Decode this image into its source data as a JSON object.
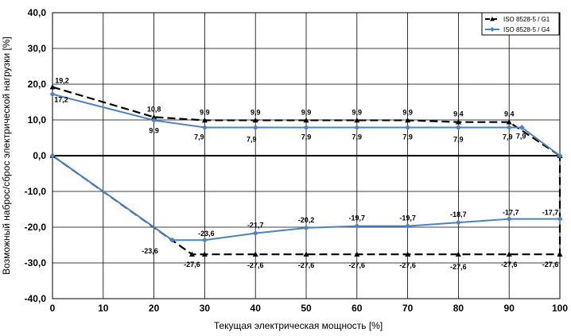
{
  "chart_data": {
    "type": "line",
    "xlabel": "Текущая электрическая мощность [%]",
    "ylabel": "Возможный наброс/сброс электрической нагрузки [%]",
    "xlim": [
      0,
      100
    ],
    "ylim": [
      -40,
      40
    ],
    "x_ticks": [
      "0",
      "10",
      "20",
      "30",
      "40",
      "50",
      "60",
      "70",
      "80",
      "90",
      "100"
    ],
    "y_ticks": [
      "40,0",
      "30,0",
      "20,0",
      "10,0",
      "0,0",
      "-10,0",
      "-20,0",
      "-30,0",
      "-40,0"
    ],
    "grid": true,
    "legend_position": "top-right",
    "series": [
      {
        "name": "ISO 8528-5 / G1",
        "color": "#000000",
        "style": "dashed",
        "marker": "triangle",
        "upper": {
          "x": [
            0,
            20,
            30,
            40,
            50,
            60,
            70,
            80,
            90,
            100
          ],
          "y": [
            19.2,
            10.8,
            9.9,
            9.9,
            9.9,
            9.9,
            9.9,
            9.4,
            9.4,
            0
          ],
          "labels": [
            "19,2",
            "10,8",
            "9,9",
            "9,9",
            "9,9",
            "9,9",
            "9,9",
            "9,4",
            "9,4",
            ""
          ]
        },
        "lower": {
          "x": [
            0,
            27.5,
            30,
            40,
            50,
            60,
            70,
            80,
            90,
            100,
            100
          ],
          "y": [
            0,
            -27.6,
            -27.6,
            -27.6,
            -27.6,
            -27.6,
            -27.6,
            -27.6,
            -27.6,
            -27.6,
            0
          ],
          "labels": [
            "",
            "-27,6",
            "",
            "-27,6",
            "-27,6",
            "-27,6",
            "-27,6",
            "-27,6",
            "-27,6",
            "-27,6",
            ""
          ]
        }
      },
      {
        "name": "ISO 8528-5 / G4",
        "color": "#4f81bd",
        "style": "solid",
        "marker": "diamond",
        "upper": {
          "x": [
            0,
            20,
            30,
            40,
            50,
            60,
            70,
            80,
            90,
            92.5,
            100
          ],
          "y": [
            17.2,
            9.9,
            7.9,
            7.9,
            7.9,
            7.9,
            7.9,
            7.9,
            7.9,
            7.9,
            0
          ],
          "labels": [
            "17,2",
            "9,9",
            "7,9",
            "7,9",
            "7,9",
            "7,9",
            "7,9",
            "7,9",
            "7,9",
            "7,9",
            ""
          ]
        },
        "lower": {
          "x": [
            0,
            23.6,
            30,
            40,
            50,
            60,
            70,
            80,
            90,
            100
          ],
          "y": [
            0,
            -23.6,
            -23.6,
            -21.7,
            -20.2,
            -19.7,
            -19.7,
            -18.7,
            -17.7,
            -17.7
          ],
          "labels": [
            "",
            "-23,6",
            "-23,6",
            "-21,7",
            "-20,2",
            "-19,7",
            "-19,7",
            "-18,7",
            "-17,7",
            "-17,7"
          ]
        }
      }
    ]
  }
}
